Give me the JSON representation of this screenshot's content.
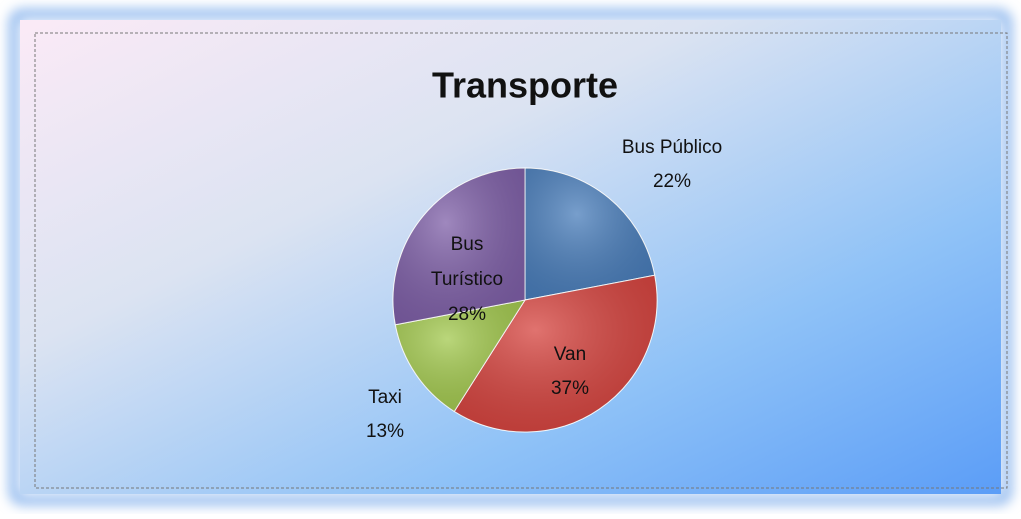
{
  "chart_data": {
    "type": "pie",
    "title": "Transporte",
    "categories": [
      "Bus Público",
      "Van",
      "Taxi",
      "Bus Turístico"
    ],
    "values": [
      22,
      37,
      13,
      28
    ],
    "value_labels": [
      "22%",
      "37%",
      "13%",
      "28%"
    ],
    "colors": [
      "#4a7ebb",
      "#d6443f",
      "#a3c94f",
      "#7f60a8"
    ]
  }
}
